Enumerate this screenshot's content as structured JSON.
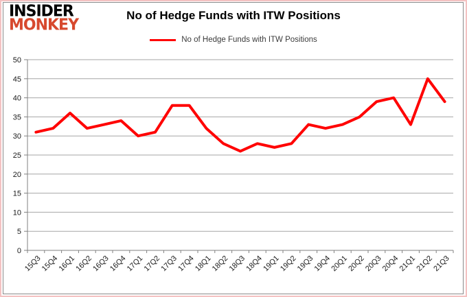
{
  "logo": {
    "line1": "INSIDER",
    "line2": "MONKEY",
    "line1_color": "#000000",
    "line2_color": "#d7492e"
  },
  "header": {
    "title": "No of Hedge Funds with ITW Positions"
  },
  "legend": {
    "label": "No of Hedge Funds with ITW Positions"
  },
  "chart_data": {
    "type": "line",
    "title": "No of Hedge Funds with ITW Positions",
    "categories": [
      "15Q3",
      "15Q4",
      "16Q1",
      "16Q2",
      "16Q3",
      "16Q4",
      "17Q1",
      "17Q2",
      "17Q3",
      "17Q4",
      "18Q1",
      "18Q2",
      "18Q3",
      "18Q4",
      "19Q1",
      "19Q2",
      "19Q3",
      "19Q4",
      "20Q1",
      "20Q2",
      "20Q3",
      "20Q4",
      "21Q1",
      "21Q2",
      "21Q3"
    ],
    "series": [
      {
        "name": "No of Hedge Funds with ITW Positions",
        "color": "#ff0000",
        "values": [
          31,
          32,
          36,
          32,
          33,
          34,
          30,
          31,
          38,
          38,
          32,
          28,
          26,
          28,
          27,
          28,
          33,
          32,
          33,
          35,
          39,
          40,
          33,
          45,
          39
        ]
      }
    ],
    "xlabel": "",
    "ylabel": "",
    "ylim": [
      0,
      50
    ],
    "ytick_step": 5,
    "grid": true,
    "legend_position": "top"
  },
  "colors": {
    "gridline": "#a6a6a6",
    "axis": "#808080",
    "tick_label": "#1a1a1a",
    "outer_border": "#f4c2c2",
    "panel_border": "#8a8a8a",
    "background": "#ffffff"
  }
}
